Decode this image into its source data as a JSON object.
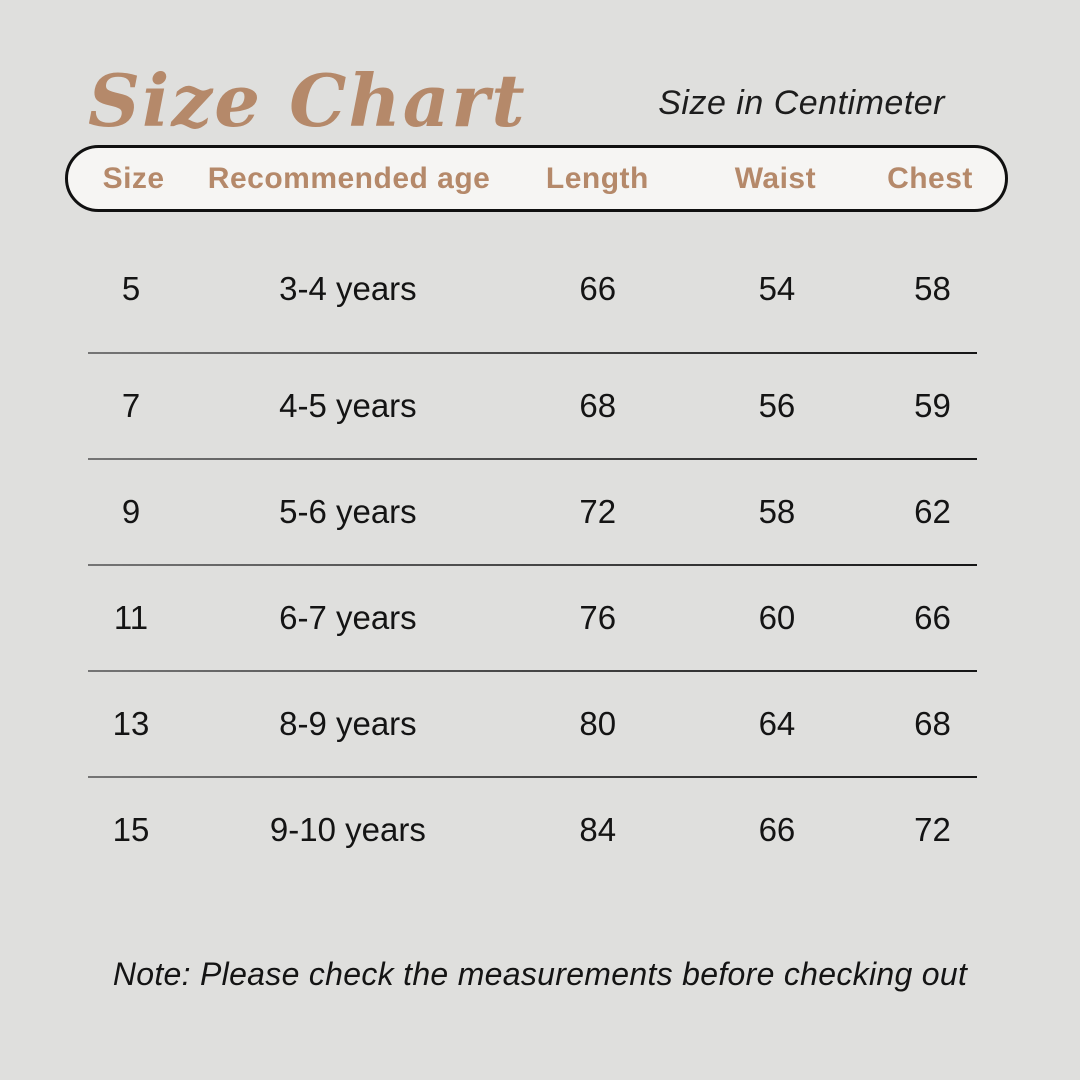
{
  "page": {
    "title": "Size Chart",
    "subtitle": "Size in Centimeter",
    "note": "Note: Please check the measurements before checking out"
  },
  "colors": {
    "background": "#dfdfdd",
    "accent_brown": "#b5896a",
    "pill_background": "#f6f5f3",
    "pill_border": "#101010",
    "body_text": "#141414",
    "divider": "#3c3c3c"
  },
  "table": {
    "columns": [
      "Size",
      "Recommended age",
      "Length",
      "Waist",
      "Chest"
    ],
    "rows": [
      {
        "size": "5",
        "age": "3-4 years",
        "length": "66",
        "waist": "54",
        "chest": "58"
      },
      {
        "size": "7",
        "age": "4-5 years",
        "length": "68",
        "waist": "56",
        "chest": "59"
      },
      {
        "size": "9",
        "age": "5-6 years",
        "length": "72",
        "waist": "58",
        "chest": "62"
      },
      {
        "size": "11",
        "age": "6-7 years",
        "length": "76",
        "waist": "60",
        "chest": "66"
      },
      {
        "size": "13",
        "age": "8-9 years",
        "length": "80",
        "waist": "64",
        "chest": "68"
      },
      {
        "size": "15",
        "age": "9-10 years",
        "length": "84",
        "waist": "66",
        "chest": "72"
      }
    ]
  }
}
